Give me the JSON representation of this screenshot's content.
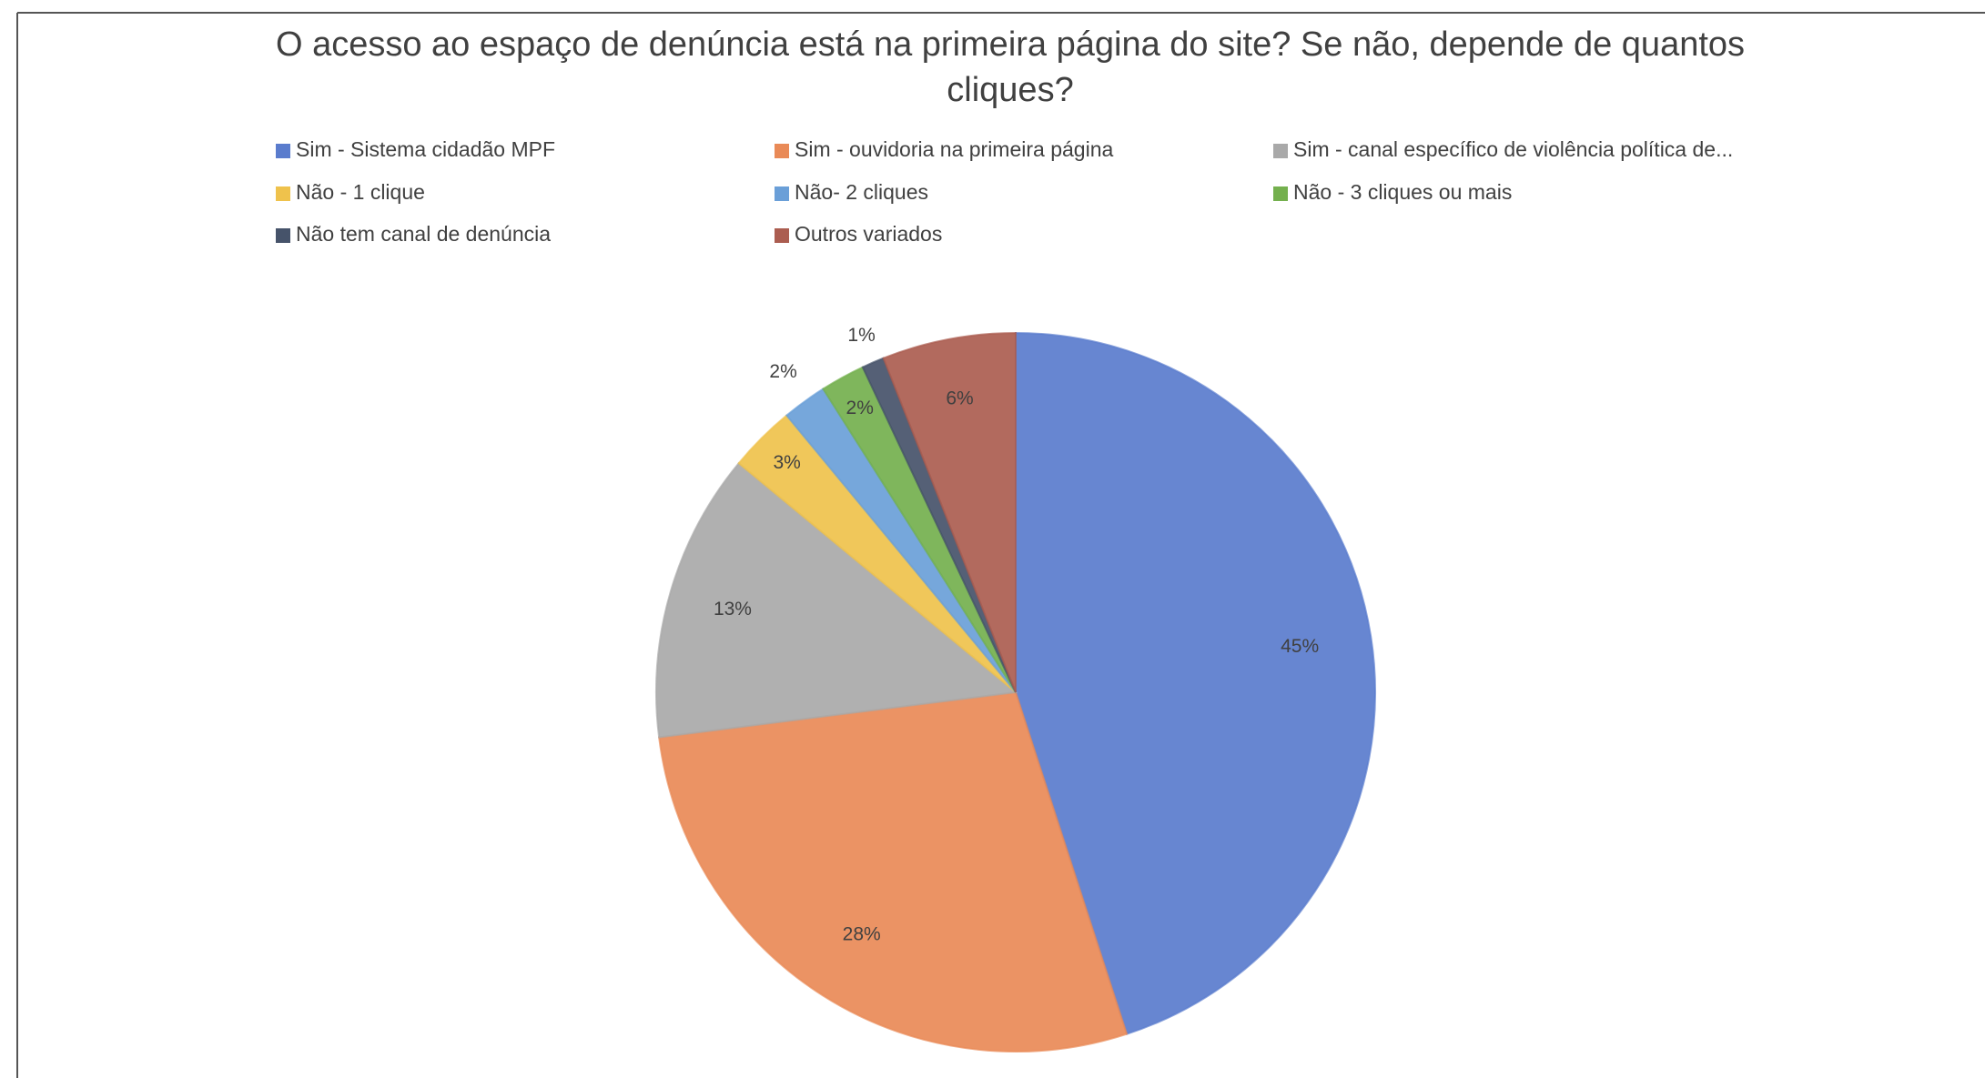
{
  "chart_data": {
    "type": "pie",
    "title": "O acesso ao espaço de denúncia está na primeira página do site? Se não, depende de quantos cliques?",
    "categories": [
      "Sim - Sistema cidadão MPF",
      "Sim - ouvidoria na primeira página",
      "Sim - canal específico de violência política de...",
      "Não - 1 clique",
      "Não- 2 cliques",
      "Não - 3 cliques ou mais",
      "Não tem canal de denúncia",
      "Outros variados"
    ],
    "values": [
      45,
      28,
      13,
      3,
      2,
      2,
      1,
      6
    ],
    "value_labels": [
      "45%",
      "28%",
      "13%",
      "3%",
      "2%",
      "2%",
      "1%",
      "6%"
    ],
    "colors": [
      "#5a7ccd",
      "#e98a57",
      "#a9a9a9",
      "#efc24c",
      "#6a9fd8",
      "#74b04e",
      "#46536a",
      "#ab5d50"
    ],
    "legend": "top"
  }
}
